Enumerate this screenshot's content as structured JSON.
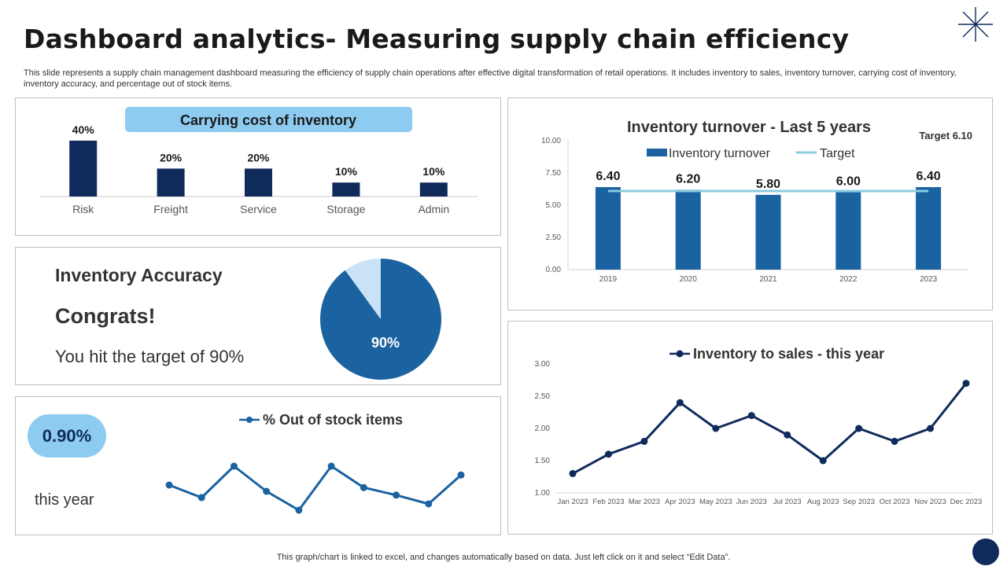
{
  "header": {
    "title": "Dashboard analytics- Measuring supply chain efficiency",
    "subtitle": "This slide represents a supply chain management dashboard measuring the efficiency of supply chain operations after effective digital transformation of retail operations. It includes inventory to sales, inventory turnover, carrying cost of inventory, inventory accuracy, and percentage out of stock items."
  },
  "footer": {
    "note": "This graph/chart is linked to excel, and changes automatically based on data. Just left click on it and select “Edit Data”."
  },
  "accuracy": {
    "title": "Inventory Accuracy",
    "congrats": "Congrats!",
    "target_text": "You hit the target of 90%"
  },
  "out_of_stock": {
    "badge": "0.90%",
    "period": "this year"
  },
  "colors": {
    "navy": "#0f2b5b",
    "blue": "#1a62a0",
    "light_blue": "#8ecbf0",
    "pale_blue": "#c9e2f5",
    "target_line": "#8ccbe0"
  },
  "chart_data": [
    {
      "id": "carrying_cost",
      "type": "bar",
      "title": "Carrying cost of inventory",
      "categories": [
        "Risk",
        "Freight",
        "Service",
        "Storage",
        "Admin"
      ],
      "values": [
        40,
        20,
        20,
        10,
        10
      ],
      "labels": [
        "40%",
        "20%",
        "20%",
        "10%",
        "10%"
      ],
      "ylim": [
        0,
        45
      ]
    },
    {
      "id": "turnover",
      "type": "bar",
      "title": "Inventory turnover - Last 5 years",
      "categories": [
        "2019",
        "2020",
        "2021",
        "2022",
        "2023"
      ],
      "series": [
        {
          "name": "Inventory turnover",
          "values": [
            6.4,
            6.2,
            5.8,
            6.0,
            6.4
          ]
        },
        {
          "name": "Target",
          "values": [
            6.1,
            6.1,
            6.1,
            6.1,
            6.1
          ]
        }
      ],
      "labels": [
        "6.40",
        "6.20",
        "5.80",
        "6.00",
        "6.40"
      ],
      "target_label": "Target 6.10",
      "yticks": [
        "0.00",
        "2.50",
        "5.00",
        "7.50",
        "10.00"
      ],
      "ylim": [
        0,
        10
      ]
    },
    {
      "id": "accuracy",
      "type": "pie",
      "values": [
        90,
        10
      ],
      "labels": [
        "90%",
        ""
      ]
    },
    {
      "id": "out_of_stock",
      "type": "line",
      "title": "% Out of stock items",
      "values": [
        0.9,
        0.8,
        1.05,
        0.85,
        0.7,
        1.05,
        0.88,
        0.82,
        0.75,
        0.98
      ]
    },
    {
      "id": "inventory_to_sales",
      "type": "line",
      "title": "Inventory to sales - this year",
      "categories": [
        "Jan 2023",
        "Feb 2023",
        "Mar 2023",
        "Apr 2023",
        "May 2023",
        "Jun 2023",
        "Jul 2023",
        "Aug 2023",
        "Sep 2023",
        "Oct 2023",
        "Nov 2023",
        "Dec 2023"
      ],
      "values": [
        1.3,
        1.6,
        1.8,
        2.4,
        2.0,
        2.2,
        1.9,
        1.5,
        2.0,
        1.8,
        2.0,
        2.7
      ],
      "yticks": [
        "1.00",
        "1.50",
        "2.00",
        "2.50",
        "3.00"
      ],
      "ylim": [
        1,
        3
      ]
    }
  ]
}
